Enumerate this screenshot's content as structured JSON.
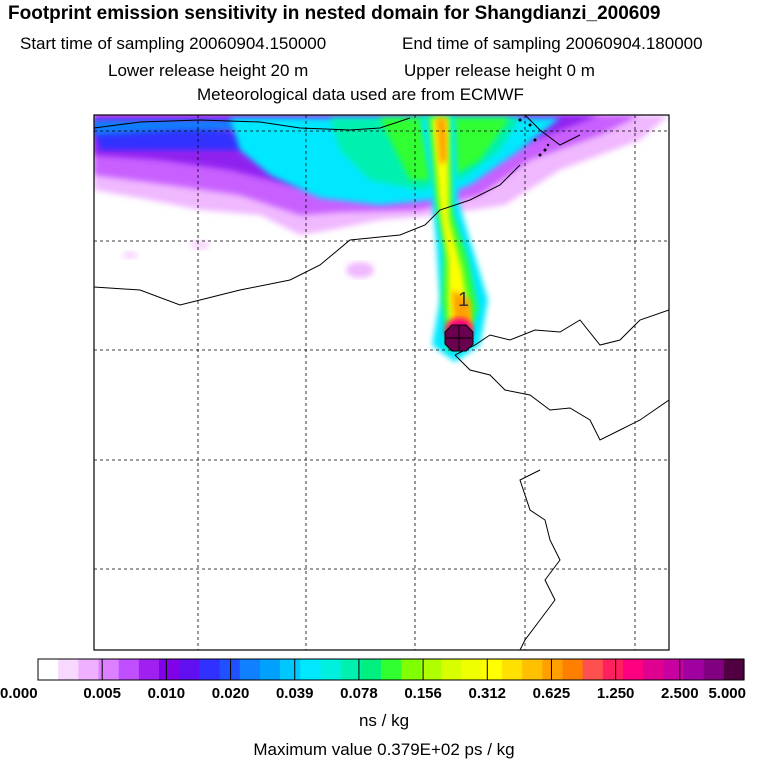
{
  "header": {
    "title": "Footprint emission sensitivity in nested domain for Shangdianzi_200609",
    "start_time": "Start time of sampling 20060904.150000",
    "end_time": "End time of sampling 20060904.180000",
    "lower_height": "Lower release height   20 m",
    "upper_height": "Upper release height    0 m",
    "met_data": "Meteorological data used are from ECMWF"
  },
  "map": {
    "station_marker": "1",
    "colors": {
      "ocean_boundary": "#000000",
      "grid": "#000000",
      "plume_core": "#e0006a",
      "marker_fill": "#6a004f"
    }
  },
  "colorbar": {
    "labels": [
      "0.000",
      "0.005",
      "0.010",
      "0.020",
      "0.039",
      "0.078",
      "0.156",
      "0.312",
      "0.625",
      "1.250",
      "2.500",
      "5.000"
    ],
    "colors": [
      "#ffffff",
      "#f8d8ff",
      "#efb0ff",
      "#dd80ff",
      "#c050ff",
      "#a020f0",
      "#8000e8",
      "#6010f0",
      "#3030ff",
      "#2050ff",
      "#1080ff",
      "#00a0ff",
      "#00c8ff",
      "#00e8ff",
      "#00f0e0",
      "#00f0b0",
      "#00f080",
      "#30ff30",
      "#80ff00",
      "#b0ff00",
      "#d8ff00",
      "#f0ff00",
      "#ffff00",
      "#ffe000",
      "#ffc000",
      "#ffa000",
      "#ff8000",
      "#ff5050",
      "#ff2060",
      "#ff0080",
      "#e00090",
      "#c800a0",
      "#a000a0",
      "#800080",
      "#500040"
    ],
    "unit": "ns / kg",
    "max_value": "Maximum value  0.379E+02 ps / kg"
  }
}
